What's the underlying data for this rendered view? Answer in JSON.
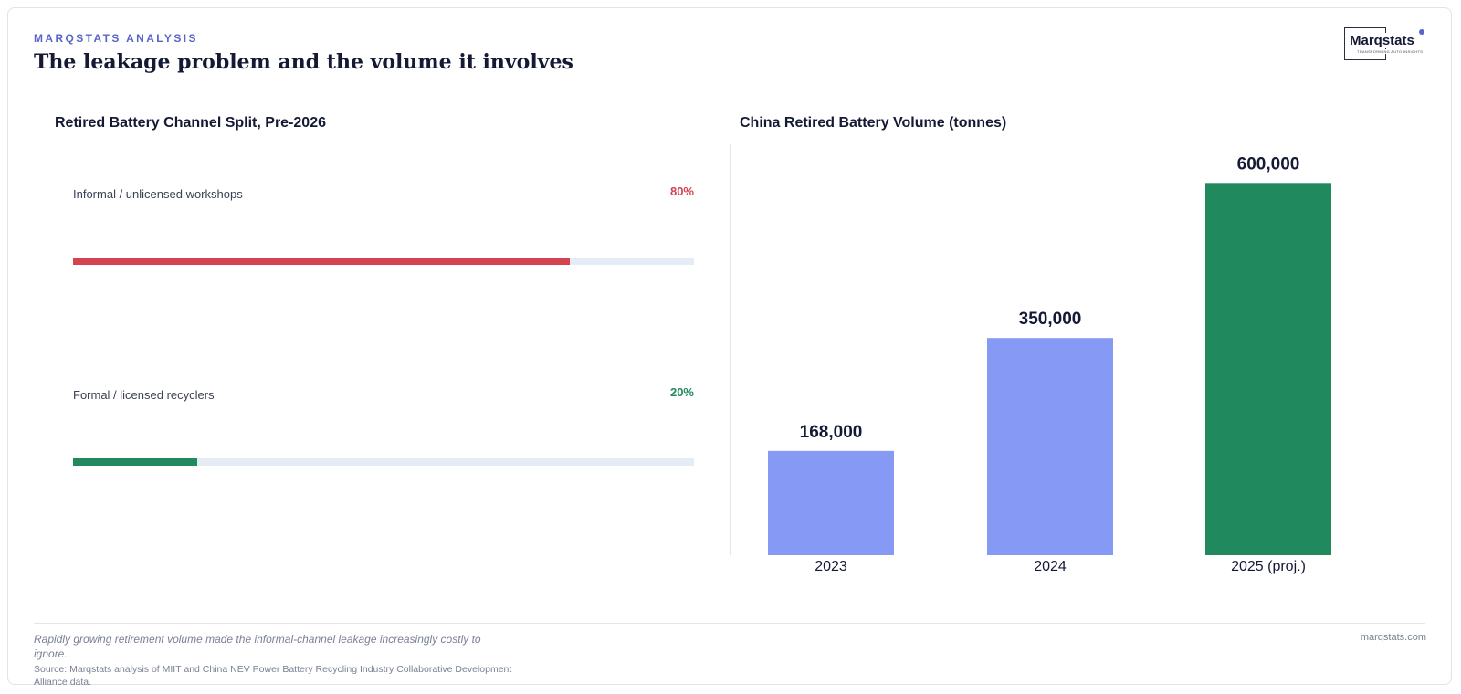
{
  "header": {
    "eyebrow": "MARQSTATS ANALYSIS",
    "title": "The leakage problem and the volume it involves"
  },
  "logo": {
    "wordmark": "Marqstats",
    "tagline": "TRANSFORMING AUTO INSIGHTS"
  },
  "colors": {
    "informal": "#d4444f",
    "formal": "#208a5e",
    "track": "#e6ecf5",
    "bar_default": "#8599f5",
    "bar_highlight": "#208a5e",
    "text_dark": "#141a33",
    "accent": "#5865c8"
  },
  "chart_data": [
    {
      "type": "bar",
      "orientation": "horizontal",
      "title": "Retired Battery Channel Split, Pre-2026",
      "categories": [
        "Informal / unlicensed workshops",
        "Formal / licensed recyclers"
      ],
      "values": [
        80,
        20
      ],
      "value_labels": [
        "80%",
        "20%"
      ],
      "xlim": [
        0,
        100
      ]
    },
    {
      "type": "bar",
      "title": "China Retired Battery Volume (tonnes)",
      "categories": [
        "2023",
        "2024",
        "2025 (proj.)"
      ],
      "values": [
        168000,
        350000,
        600000
      ],
      "value_labels": [
        "168,000",
        "350,000",
        "600,000"
      ],
      "highlight_index": 2,
      "ylim": [
        0,
        780000
      ],
      "grid": false
    }
  ],
  "footer": {
    "note": "Rapidly growing retirement volume made the informal-channel leakage increasingly costly to ignore.",
    "source": "Source: Marqstats analysis of MIIT and China NEV Power Battery Recycling Industry Collaborative Development Alliance data.",
    "site": "marqstats.com"
  }
}
